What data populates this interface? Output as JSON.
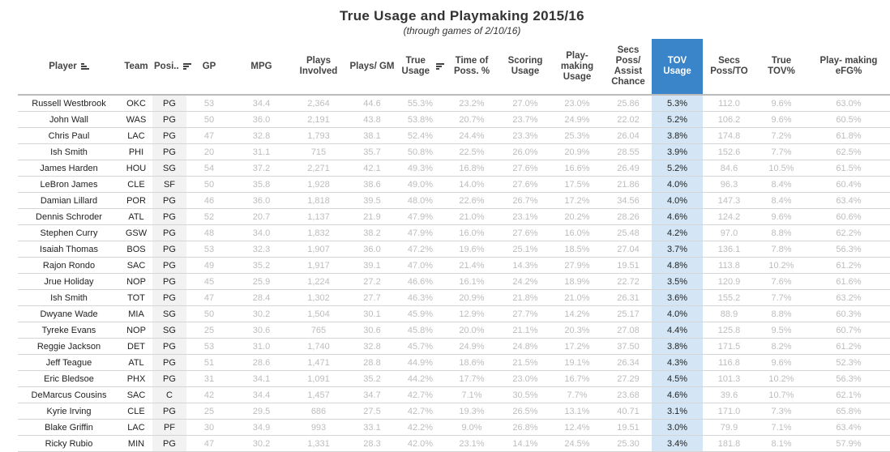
{
  "title": "True Usage and Playmaking 2015/16",
  "subtitle": "(through games of 2/10/16)",
  "columns": {
    "player": "Player",
    "team": "Team",
    "pos": "Posi..",
    "gp": "GP",
    "mpg": "MPG",
    "plays_involved": "Plays Involved",
    "plays_gm": "Plays/ GM",
    "true_usage": "True Usage",
    "time_poss": "Time of Poss. %",
    "scoring_usage": "Scoring Usage",
    "playmaking_usage": "Play- making Usage",
    "secs_assist": "Secs Poss/ Assist Chance",
    "tov_usage": "TOV Usage",
    "secs_to": "Secs Poss/TO",
    "true_tov": "True TOV%",
    "playmaking_efg": "Play- making eFG%"
  },
  "rows": [
    [
      "Russell Westbrook",
      "OKC",
      "PG",
      "53",
      "34.4",
      "2,364",
      "44.6",
      "55.3%",
      "23.2%",
      "27.0%",
      "23.0%",
      "25.86",
      "5.3%",
      "112.0",
      "9.6%",
      "63.0%"
    ],
    [
      "John Wall",
      "WAS",
      "PG",
      "50",
      "36.0",
      "2,191",
      "43.8",
      "53.8%",
      "20.7%",
      "23.7%",
      "24.9%",
      "22.02",
      "5.2%",
      "106.2",
      "9.6%",
      "60.5%"
    ],
    [
      "Chris Paul",
      "LAC",
      "PG",
      "47",
      "32.8",
      "1,793",
      "38.1",
      "52.4%",
      "24.4%",
      "23.3%",
      "25.3%",
      "26.04",
      "3.8%",
      "174.8",
      "7.2%",
      "61.8%"
    ],
    [
      "Ish Smith",
      "PHI",
      "PG",
      "20",
      "31.1",
      "715",
      "35.7",
      "50.8%",
      "22.5%",
      "26.0%",
      "20.9%",
      "28.55",
      "3.9%",
      "152.6",
      "7.7%",
      "62.5%"
    ],
    [
      "James Harden",
      "HOU",
      "SG",
      "54",
      "37.2",
      "2,271",
      "42.1",
      "49.3%",
      "16.8%",
      "27.6%",
      "16.6%",
      "26.49",
      "5.2%",
      "84.6",
      "10.5%",
      "61.5%"
    ],
    [
      "LeBron James",
      "CLE",
      "SF",
      "50",
      "35.8",
      "1,928",
      "38.6",
      "49.0%",
      "14.0%",
      "27.6%",
      "17.5%",
      "21.86",
      "4.0%",
      "96.3",
      "8.4%",
      "60.4%"
    ],
    [
      "Damian Lillard",
      "POR",
      "PG",
      "46",
      "36.0",
      "1,818",
      "39.5",
      "48.0%",
      "22.6%",
      "26.7%",
      "17.2%",
      "34.56",
      "4.0%",
      "147.3",
      "8.4%",
      "63.4%"
    ],
    [
      "Dennis Schroder",
      "ATL",
      "PG",
      "52",
      "20.7",
      "1,137",
      "21.9",
      "47.9%",
      "21.0%",
      "23.1%",
      "20.2%",
      "28.26",
      "4.6%",
      "124.2",
      "9.6%",
      "60.6%"
    ],
    [
      "Stephen Curry",
      "GSW",
      "PG",
      "48",
      "34.0",
      "1,832",
      "38.2",
      "47.9%",
      "16.0%",
      "27.6%",
      "16.0%",
      "25.48",
      "4.2%",
      "97.0",
      "8.8%",
      "62.2%"
    ],
    [
      "Isaiah Thomas",
      "BOS",
      "PG",
      "53",
      "32.3",
      "1,907",
      "36.0",
      "47.2%",
      "19.6%",
      "25.1%",
      "18.5%",
      "27.04",
      "3.7%",
      "136.1",
      "7.8%",
      "56.3%"
    ],
    [
      "Rajon Rondo",
      "SAC",
      "PG",
      "49",
      "35.2",
      "1,917",
      "39.1",
      "47.0%",
      "21.4%",
      "14.3%",
      "27.9%",
      "19.51",
      "4.8%",
      "113.8",
      "10.2%",
      "61.2%"
    ],
    [
      "Jrue Holiday",
      "NOP",
      "PG",
      "45",
      "25.9",
      "1,224",
      "27.2",
      "46.6%",
      "16.1%",
      "24.2%",
      "18.9%",
      "22.72",
      "3.5%",
      "120.9",
      "7.6%",
      "61.6%"
    ],
    [
      "Ish Smith",
      "TOT",
      "PG",
      "47",
      "28.4",
      "1,302",
      "27.7",
      "46.3%",
      "20.9%",
      "21.8%",
      "21.0%",
      "26.31",
      "3.6%",
      "155.2",
      "7.7%",
      "63.2%"
    ],
    [
      "Dwyane Wade",
      "MIA",
      "SG",
      "50",
      "30.2",
      "1,504",
      "30.1",
      "45.9%",
      "12.9%",
      "27.7%",
      "14.2%",
      "25.17",
      "4.0%",
      "88.9",
      "8.8%",
      "60.3%"
    ],
    [
      "Tyreke Evans",
      "NOP",
      "SG",
      "25",
      "30.6",
      "765",
      "30.6",
      "45.8%",
      "20.0%",
      "21.1%",
      "20.3%",
      "27.08",
      "4.4%",
      "125.8",
      "9.5%",
      "60.7%"
    ],
    [
      "Reggie Jackson",
      "DET",
      "PG",
      "53",
      "31.0",
      "1,740",
      "32.8",
      "45.7%",
      "24.9%",
      "24.8%",
      "17.2%",
      "37.50",
      "3.8%",
      "171.5",
      "8.2%",
      "61.2%"
    ],
    [
      "Jeff Teague",
      "ATL",
      "PG",
      "51",
      "28.6",
      "1,471",
      "28.8",
      "44.9%",
      "18.6%",
      "21.5%",
      "19.1%",
      "26.34",
      "4.3%",
      "116.8",
      "9.6%",
      "52.3%"
    ],
    [
      "Eric Bledsoe",
      "PHX",
      "PG",
      "31",
      "34.1",
      "1,091",
      "35.2",
      "44.2%",
      "17.7%",
      "23.0%",
      "16.7%",
      "27.29",
      "4.5%",
      "101.3",
      "10.2%",
      "56.3%"
    ],
    [
      "DeMarcus Cousins",
      "SAC",
      "C",
      "42",
      "34.4",
      "1,457",
      "34.7",
      "42.7%",
      "7.1%",
      "30.5%",
      "7.7%",
      "23.68",
      "4.6%",
      "39.6",
      "10.7%",
      "62.1%"
    ],
    [
      "Kyrie Irving",
      "CLE",
      "PG",
      "25",
      "29.5",
      "686",
      "27.5",
      "42.7%",
      "19.3%",
      "26.5%",
      "13.1%",
      "40.71",
      "3.1%",
      "171.0",
      "7.3%",
      "65.8%"
    ],
    [
      "Blake Griffin",
      "LAC",
      "PF",
      "30",
      "34.9",
      "993",
      "33.1",
      "42.2%",
      "9.0%",
      "26.8%",
      "12.4%",
      "19.51",
      "3.0%",
      "79.9",
      "7.1%",
      "63.4%"
    ],
    [
      "Ricky Rubio",
      "MIN",
      "PG",
      "47",
      "30.2",
      "1,331",
      "28.3",
      "42.0%",
      "23.1%",
      "14.1%",
      "24.5%",
      "25.30",
      "3.4%",
      "181.8",
      "8.1%",
      "57.9%"
    ]
  ],
  "colors": {
    "highlight_header": "#3a84c9",
    "highlight_cells": "#d4e6f5"
  },
  "icons": {
    "sort": "sort-bars-icon"
  }
}
